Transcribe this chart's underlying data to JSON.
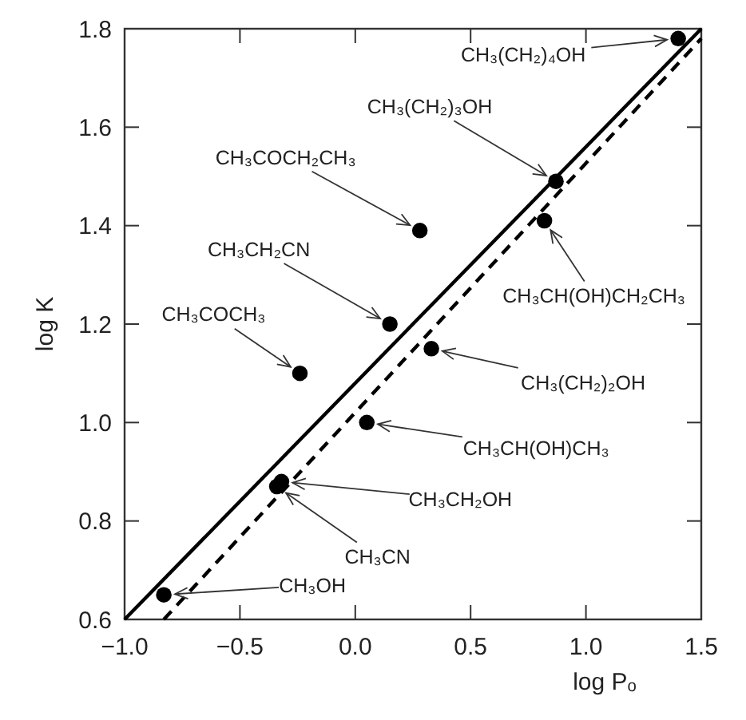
{
  "chart_data": {
    "type": "scatter",
    "xlabel": "log Pₒ",
    "ylabel": "log K",
    "xlim": [
      -1.0,
      1.5
    ],
    "xticks": [
      {
        "value": -1.0,
        "label": "−1.0"
      },
      {
        "value": -0.5,
        "label": "−0.5"
      },
      {
        "value": 0.0,
        "label": "0.0"
      },
      0.5,
      {
        "value": 1.0,
        "label": "1.0"
      },
      1.5
    ],
    "ylim": [
      0.6,
      1.8
    ],
    "yticks": [
      0.6,
      0.8,
      {
        "value": 1.0,
        "label": "1.0"
      },
      1.2,
      1.4,
      1.6,
      1.8
    ],
    "grid": false,
    "series": [
      {
        "type": "scatter",
        "color": "#000000",
        "marker": "circle",
        "x": [
          1.4,
          0.87,
          0.82,
          0.28,
          0.15,
          0.33,
          -0.24,
          0.05,
          -0.32,
          -0.34,
          -0.83
        ],
        "values": [
          1.78,
          1.49,
          1.41,
          1.39,
          1.2,
          1.15,
          1.1,
          1.0,
          0.88,
          0.87,
          0.65
        ]
      },
      {
        "type": "line",
        "color": "#000000",
        "line_style": "solid",
        "marker": "none",
        "x": [
          -1.0,
          1.5
        ],
        "values": [
          0.6,
          1.8
        ]
      },
      {
        "type": "line",
        "color": "#000000",
        "line_style": "dashed",
        "marker": "none",
        "x": [
          -0.83,
          1.5
        ],
        "values": [
          0.6,
          1.78
        ]
      }
    ],
    "annotations": [
      {
        "text": "CH₃(CH₂)₄OH",
        "x": 1.4,
        "y": 1.78
      },
      {
        "text": "CH₃(CH₂)₃OH",
        "x": 0.87,
        "y": 1.49
      },
      {
        "text": "CH₃CH(OH)CH₂CH₃",
        "x": 0.82,
        "y": 1.41
      },
      {
        "text": "CH₃COCH₂CH₃",
        "x": 0.28,
        "y": 1.39
      },
      {
        "text": "CH₃CH₂CN",
        "x": 0.15,
        "y": 1.2
      },
      {
        "text": "CH₃(CH₂)₂OH",
        "x": 0.33,
        "y": 1.15
      },
      {
        "text": "CH₃COCH₃",
        "x": -0.24,
        "y": 1.1
      },
      {
        "text": "CH₃CH(OH)CH₃",
        "x": 0.05,
        "y": 1.0
      },
      {
        "text": "CH₃CH₂OH",
        "x": -0.32,
        "y": 0.88
      },
      {
        "text": "CH₃CN",
        "x": -0.34,
        "y": 0.87
      },
      {
        "text": "CH₃OH",
        "x": -0.83,
        "y": 0.65
      }
    ]
  }
}
